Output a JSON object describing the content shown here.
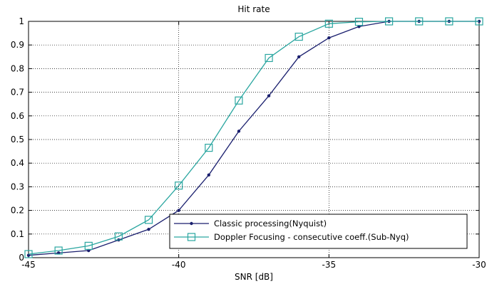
{
  "chart_data": {
    "type": "line",
    "title": "Hit rate",
    "xlabel": "SNR [dB]",
    "ylabel": "",
    "xlim": [
      -45,
      -30
    ],
    "ylim": [
      0,
      1
    ],
    "x_ticks": [
      -45,
      -40,
      -35,
      -30
    ],
    "y_ticks": [
      0,
      0.1,
      0.2,
      0.3,
      0.4,
      0.5,
      0.6,
      0.7,
      0.8,
      0.9,
      1
    ],
    "grid": true,
    "legend_position": "bottom-right",
    "x": [
      -45,
      -44,
      -43,
      -42,
      -41,
      -40,
      -39,
      -38,
      -37,
      -36,
      -35,
      -34,
      -33,
      -32,
      -31,
      -30
    ],
    "series": [
      {
        "name": "Classic processing(Nyquist)",
        "color": "#1a1f6e",
        "marker": "dot",
        "values": [
          0.01,
          0.02,
          0.03,
          0.075,
          0.12,
          0.2,
          0.35,
          0.535,
          0.685,
          0.85,
          0.93,
          0.978,
          1.0,
          1.0,
          1.0,
          1.0
        ]
      },
      {
        "name": "Doppler Focusing - consecutive coeff.(Sub-Nyq)",
        "color": "#2aa6a0",
        "marker": "square",
        "values": [
          0.015,
          0.03,
          0.05,
          0.09,
          0.16,
          0.305,
          0.465,
          0.665,
          0.845,
          0.935,
          0.99,
          0.998,
          1.0,
          1.0,
          1.0,
          1.0
        ]
      }
    ]
  }
}
